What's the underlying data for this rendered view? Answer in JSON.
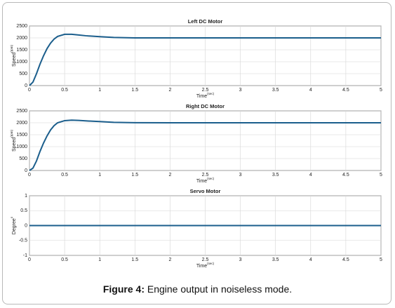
{
  "chart_data": [
    {
      "type": "line",
      "title": "Left DC Motor",
      "xlabel": "Time",
      "xlabel_unit": "(sec)",
      "ylabel": "Speed",
      "ylabel_unit": "(rpm)",
      "x": [
        0,
        0.05,
        0.1,
        0.15,
        0.2,
        0.25,
        0.3,
        0.35,
        0.4,
        0.5,
        0.6,
        0.7,
        0.8,
        1.0,
        1.2,
        1.5,
        2,
        3,
        4,
        5
      ],
      "values": [
        0,
        150,
        500,
        900,
        1250,
        1550,
        1780,
        1950,
        2060,
        2150,
        2150,
        2120,
        2090,
        2050,
        2020,
        2000,
        2000,
        2000,
        2000,
        2000
      ],
      "color": "#1b5e8c",
      "xlim": [
        0,
        5
      ],
      "ylim": [
        0,
        2500
      ],
      "xticks": [
        0,
        0.5,
        1,
        1.5,
        2,
        2.5,
        3,
        3.5,
        4,
        4.5,
        5
      ],
      "yticks": [
        0,
        500,
        1000,
        1500,
        2000,
        2500
      ],
      "grid": true
    },
    {
      "type": "line",
      "title": "Right DC Motor",
      "xlabel": "Time",
      "xlabel_unit": "(sec)",
      "ylabel": "Speed",
      "ylabel_unit": "(rpm)",
      "x": [
        0,
        0.05,
        0.1,
        0.15,
        0.2,
        0.25,
        0.3,
        0.35,
        0.4,
        0.5,
        0.6,
        0.7,
        0.8,
        1.0,
        1.2,
        1.5,
        2,
        3,
        4,
        5
      ],
      "values": [
        0,
        100,
        400,
        800,
        1150,
        1450,
        1700,
        1880,
        2000,
        2090,
        2110,
        2100,
        2080,
        2050,
        2020,
        2005,
        2000,
        2000,
        2000,
        2000
      ],
      "color": "#1b5e8c",
      "xlim": [
        0,
        5
      ],
      "ylim": [
        0,
        2500
      ],
      "xticks": [
        0,
        0.5,
        1,
        1.5,
        2,
        2.5,
        3,
        3.5,
        4,
        4.5,
        5
      ],
      "yticks": [
        0,
        500,
        1000,
        1500,
        2000,
        2500
      ],
      "grid": true
    },
    {
      "type": "line",
      "title": "Servo Motor",
      "xlabel": "Time",
      "xlabel_unit": "(sec)",
      "ylabel": "Degree",
      "ylabel_unit": "o",
      "x": [
        0,
        5
      ],
      "values": [
        0,
        0
      ],
      "color": "#1b5e8c",
      "xlim": [
        0,
        5
      ],
      "ylim": [
        -1,
        1
      ],
      "xticks": [
        0,
        0.5,
        1,
        1.5,
        2,
        2.5,
        3,
        3.5,
        4,
        4.5,
        5
      ],
      "yticks": [
        -1,
        -0.5,
        0,
        0.5,
        1
      ],
      "grid": true
    }
  ],
  "caption": {
    "label": "Figure 4:",
    "text": "Engine output in noiseless mode."
  }
}
